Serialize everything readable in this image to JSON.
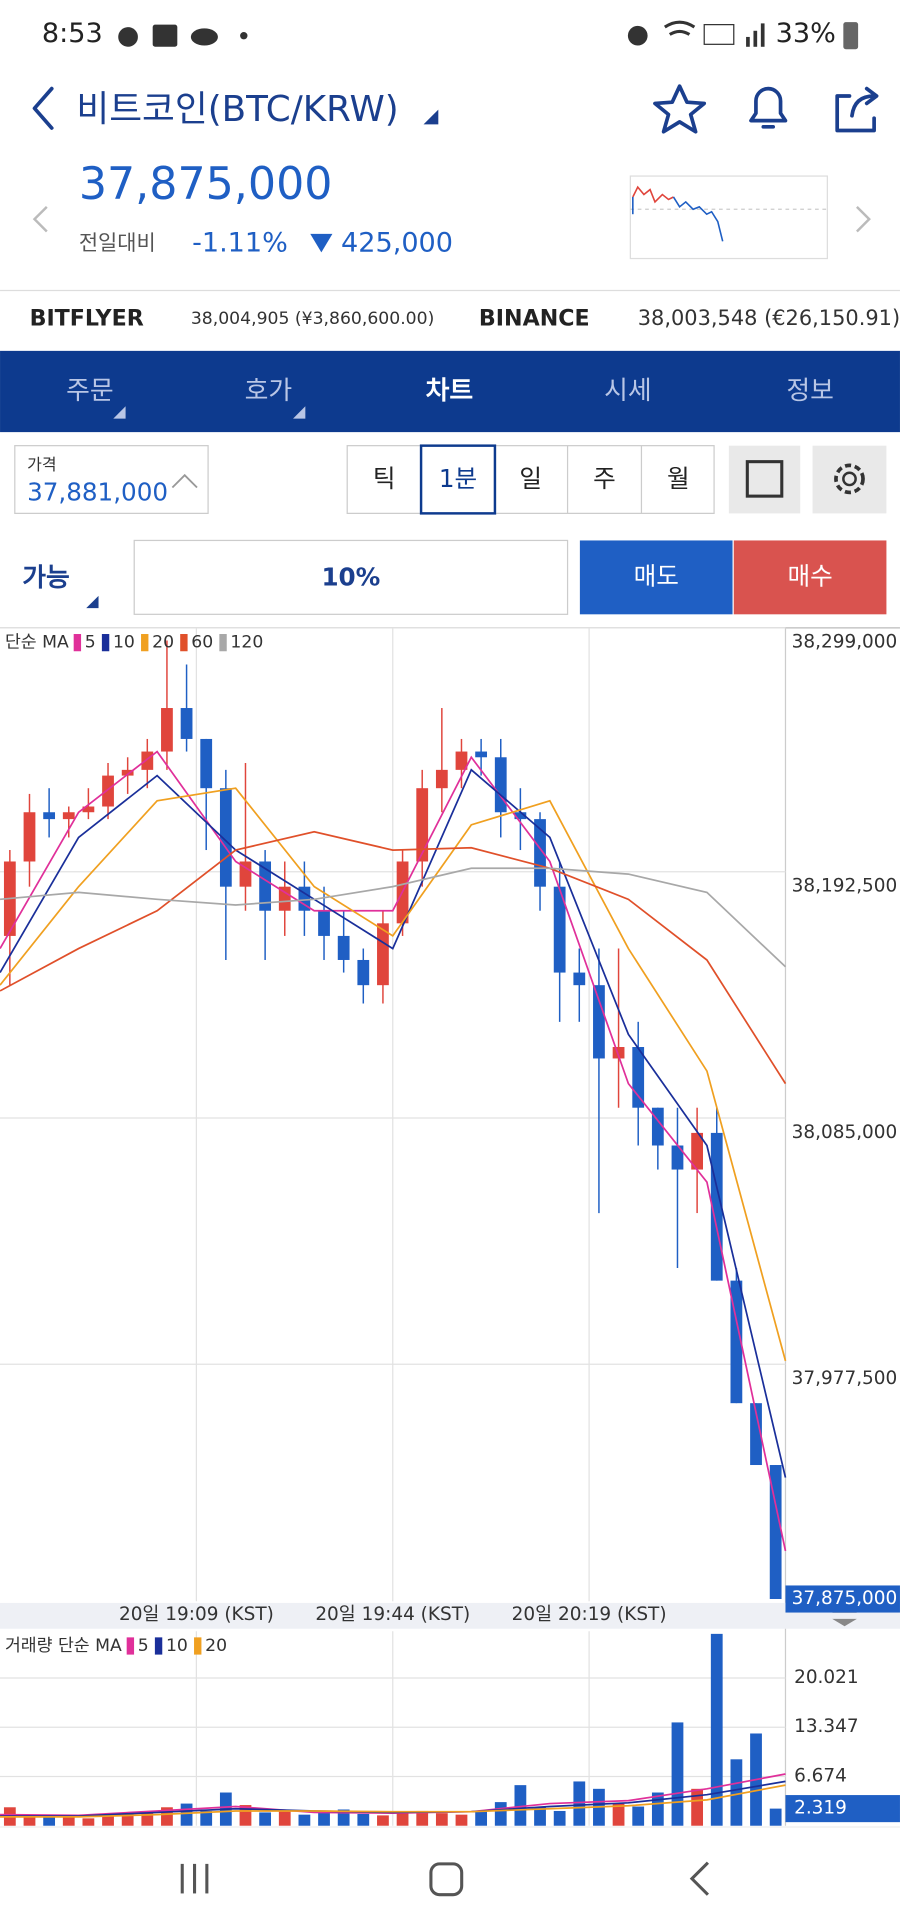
{
  "screen": {
    "status": {
      "time": "8:53",
      "battery": "33%"
    },
    "header": {
      "title": "비트코인(BTC/KRW)",
      "price": "37,875,000",
      "change_label": "전일대비",
      "change_rate": "-1.11%",
      "change_amount": "425,000"
    },
    "exchanges": [
      {
        "name": "BITFLYER",
        "price": "38,004,905 (¥3,860,600.00)"
      },
      {
        "name": "BINANCE",
        "price": "38,003,548 (€26,150.91)"
      }
    ],
    "tabs": [
      "주문",
      "호가",
      "차트",
      "시세",
      "정보"
    ],
    "price_box": {
      "label": "가격",
      "value": "37,881,000"
    },
    "periods": [
      "틱",
      "1분",
      "일",
      "주",
      "월"
    ],
    "order": {
      "available": "가능",
      "ratio": "10%",
      "sell": "매도",
      "buy": "매수"
    }
  },
  "chart_data": [
    {
      "type": "candlestick",
      "legend_title": "단순 MA",
      "xlim": [
        0,
        40
      ],
      "xticks": [
        {
          "value": 10,
          "label": "20일 19:09 (KST)"
        },
        {
          "value": 20,
          "label": "20일 19:44 (KST)"
        },
        {
          "value": 30,
          "label": "20일 20:19 (KST)"
        }
      ],
      "ylim": [
        37874000,
        38299000
      ],
      "yticks": [
        {
          "value": 38299000,
          "label": "38,299,000"
        },
        {
          "value": 38192500,
          "label": "38,192,500"
        },
        {
          "value": 38085000,
          "label": "38,085,000"
        },
        {
          "value": 37977500,
          "label": "37,977,500"
        }
      ],
      "grid": true,
      "up_color": "#e0453c",
      "down_color": "#1f5fc4",
      "open": [
        38164500,
        38197000,
        38218500,
        38215500,
        38218500,
        38221000,
        38234500,
        38237000,
        38245000,
        38264000,
        38250500,
        38229000,
        38186000,
        38197000,
        38175500,
        38186000,
        38175500,
        38164500,
        38154000,
        38143000,
        38170000,
        38197000,
        38229000,
        38237000,
        38245000,
        38242500,
        38218500,
        38215500,
        38186000,
        38148500,
        38143000,
        38111000,
        38116000,
        38089500,
        38073000,
        38062500,
        38078500,
        38014000,
        37960500,
        37933500
      ],
      "high": [
        38202000,
        38226500,
        38229000,
        38221000,
        38229000,
        38240000,
        38242500,
        38250500,
        38293500,
        38283000,
        38250500,
        38237000,
        38240000,
        38202000,
        38197000,
        38197000,
        38186000,
        38175500,
        38159000,
        38175500,
        38202000,
        38237000,
        38264000,
        38250500,
        38250500,
        38250500,
        38229000,
        38218500,
        38197000,
        38159000,
        38159000,
        38159000,
        38127000,
        38089500,
        38089500,
        38089500,
        38089500,
        38019500,
        37960500,
        37933500
      ],
      "low": [
        38143000,
        38186000,
        38207500,
        38207500,
        38215500,
        38215500,
        38226500,
        38229000,
        38237000,
        38245000,
        38202000,
        38154000,
        38175500,
        38154000,
        38164500,
        38164500,
        38154000,
        38148500,
        38135000,
        38135000,
        38164500,
        38186000,
        38218500,
        38229000,
        38234500,
        38207500,
        38202000,
        38175500,
        38127000,
        38127000,
        38043500,
        38089500,
        38073000,
        38062500,
        38019500,
        38043500,
        38014000,
        37960500,
        37933500,
        37875000
      ],
      "close": [
        38197000,
        38218500,
        38215500,
        38218500,
        38221000,
        38234500,
        38237000,
        38245000,
        38264000,
        38250500,
        38229000,
        38186000,
        38197000,
        38175500,
        38186000,
        38175500,
        38164500,
        38154000,
        38143000,
        38170000,
        38197000,
        38229000,
        38237000,
        38245000,
        38242500,
        38218500,
        38215500,
        38186000,
        38148500,
        38143000,
        38111000,
        38116000,
        38089500,
        38073000,
        38062500,
        38078500,
        38014000,
        37960500,
        37933500,
        37875000
      ],
      "last_price": {
        "value": 37875000,
        "label": "37,875,000"
      },
      "ma": [
        {
          "name": "5",
          "color": "#e0309a",
          "x": [
            0,
            4,
            8,
            12,
            16,
            20,
            24,
            28,
            32,
            36,
            40
          ],
          "values": [
            38159000,
            38218500,
            38245000,
            38197000,
            38175500,
            38175500,
            38242500,
            38197000,
            38100000,
            38057000,
            37896000
          ]
        },
        {
          "name": "10",
          "color": "#1a2f9a",
          "x": [
            0,
            4,
            8,
            12,
            16,
            20,
            24,
            28,
            32,
            36,
            40
          ],
          "values": [
            38148500,
            38207500,
            38234500,
            38202000,
            38180500,
            38159000,
            38237000,
            38207500,
            38121500,
            38073000,
            37928000
          ]
        },
        {
          "name": "20",
          "color": "#f0a020",
          "x": [
            0,
            4,
            8,
            12,
            16,
            20,
            24,
            28,
            32,
            36,
            40
          ],
          "values": [
            38143000,
            38186000,
            38223500,
            38229000,
            38186000,
            38164500,
            38213000,
            38223500,
            38159000,
            38105500,
            37979000
          ]
        },
        {
          "name": "60",
          "color": "#e0502a",
          "x": [
            0,
            4,
            8,
            12,
            16,
            20,
            24,
            28,
            32,
            36,
            40
          ],
          "values": [
            38140500,
            38159000,
            38175500,
            38202000,
            38210000,
            38202000,
            38203000,
            38194000,
            38180500,
            38154000,
            38100000
          ]
        },
        {
          "name": "120",
          "color": "#a8a8a8",
          "x": [
            0,
            4,
            8,
            12,
            16,
            20,
            24,
            28,
            32,
            36,
            40
          ],
          "values": [
            38180500,
            38183500,
            38180500,
            38178000,
            38180500,
            38186000,
            38194000,
            38194000,
            38191500,
            38183500,
            38151000
          ]
        }
      ]
    },
    {
      "type": "volume",
      "legend_title": "거래량 단순 MA",
      "xlim": [
        0,
        40
      ],
      "ylim": [
        0,
        26.36
      ],
      "yticks": [
        20.021,
        13.347,
        6.674
      ],
      "grid": true,
      "values": [
        2.5,
        1.5,
        1.2,
        1.5,
        1.0,
        1.3,
        1.6,
        1.8,
        2.5,
        3.0,
        2.0,
        4.5,
        2.8,
        1.8,
        2.0,
        1.5,
        1.8,
        2.2,
        1.6,
        1.4,
        1.8,
        2.0,
        1.7,
        1.5,
        2.0,
        3.2,
        5.5,
        2.5,
        2.0,
        6.0,
        5.0,
        3.0,
        2.6,
        4.5,
        14.0,
        5.0,
        26.0,
        9.0,
        12.5,
        2.319
      ],
      "ma": [
        {
          "name": "5",
          "color": "#e0309a",
          "x": [
            0,
            4,
            8,
            12,
            16,
            20,
            24,
            28,
            32,
            36,
            40
          ],
          "values": [
            1.5,
            1.4,
            2.0,
            2.6,
            1.8,
            1.7,
            1.9,
            3.0,
            3.4,
            5.0,
            7.0
          ]
        },
        {
          "name": "10",
          "color": "#1a2f9a",
          "x": [
            0,
            4,
            8,
            12,
            16,
            20,
            24,
            28,
            32,
            36,
            40
          ],
          "values": [
            1.3,
            1.3,
            1.8,
            2.3,
            2.0,
            1.8,
            1.9,
            2.6,
            3.1,
            4.2,
            6.0
          ]
        },
        {
          "name": "20",
          "color": "#f0a020",
          "x": [
            0,
            4,
            8,
            12,
            16,
            20,
            24,
            28,
            32,
            36,
            40
          ],
          "values": [
            1.2,
            1.2,
            1.5,
            2.0,
            2.0,
            1.9,
            1.9,
            2.3,
            2.7,
            3.5,
            5.5
          ]
        }
      ]
    }
  ]
}
